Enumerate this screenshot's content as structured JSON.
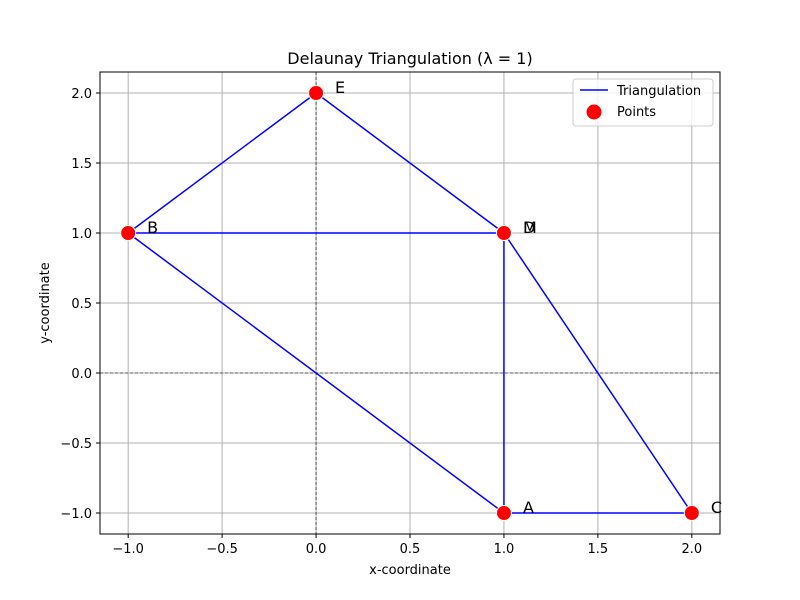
{
  "chart_data": {
    "type": "line",
    "title": "Delaunay Triangulation (λ = 1)",
    "xlabel": "x-coordinate",
    "ylabel": "y-coordinate",
    "xlim": [
      -1.15,
      2.15
    ],
    "ylim": [
      -1.15,
      2.15
    ],
    "grid": true,
    "legend_position": "top-right",
    "xticks": [
      -1.0,
      -0.5,
      0.0,
      0.5,
      1.0,
      1.5,
      2.0
    ],
    "xtick_labels": [
      "−1.0",
      "−0.5",
      "0.0",
      "0.5",
      "1.0",
      "1.5",
      "2.0"
    ],
    "yticks": [
      -1.0,
      -0.5,
      0.0,
      0.5,
      1.0,
      1.5,
      2.0
    ],
    "ytick_labels": [
      "−1.0",
      "−0.5",
      "0.0",
      "0.5",
      "1.0",
      "1.5",
      "2.0"
    ],
    "points": [
      {
        "label": "A",
        "x": 1,
        "y": -1
      },
      {
        "label": "B",
        "x": -1,
        "y": 1
      },
      {
        "label": "C",
        "x": 2,
        "y": -1
      },
      {
        "label": "D",
        "x": 1,
        "y": 1
      },
      {
        "label": "E",
        "x": 0,
        "y": 2
      },
      {
        "label": "M",
        "x": 1,
        "y": 1
      }
    ],
    "edges": [
      [
        [
          -1,
          1
        ],
        [
          0,
          2
        ]
      ],
      [
        [
          0,
          2
        ],
        [
          1,
          1
        ]
      ],
      [
        [
          -1,
          1
        ],
        [
          1,
          1
        ]
      ],
      [
        [
          -1,
          1
        ],
        [
          1,
          -1
        ]
      ],
      [
        [
          1,
          1
        ],
        [
          1,
          -1
        ]
      ],
      [
        [
          1,
          1
        ],
        [
          2,
          -1
        ]
      ],
      [
        [
          1,
          -1
        ],
        [
          2,
          -1
        ]
      ]
    ],
    "series": [
      {
        "name": "Triangulation",
        "kind": "line",
        "color": "#0000ff"
      },
      {
        "name": "Points",
        "kind": "scatter",
        "color": "#ff0000"
      }
    ],
    "reference_lines": {
      "x": 0,
      "y": 0,
      "color": "#000000",
      "style": "dashed"
    },
    "colors": {
      "grid": "#b0b0b0",
      "line": "#0000ff",
      "point": "#ff0000",
      "point_edge": "#ffffff"
    }
  }
}
